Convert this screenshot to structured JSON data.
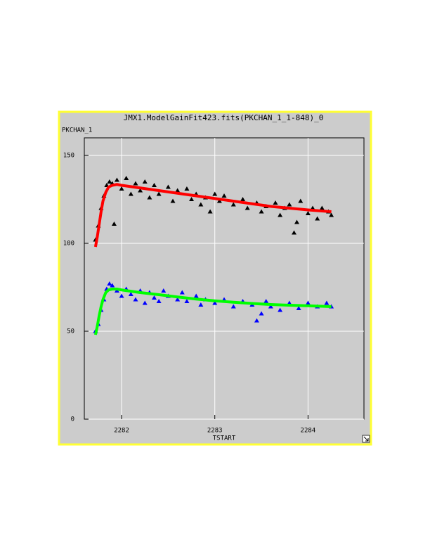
{
  "chart_data": {
    "type": "scatter",
    "title": "JMX1.ModelGainFit423.fits(PKCHAN_1_1-848)_0",
    "y_label": "PKCHAN_1",
    "x_label": "TSTART",
    "xlim": [
      2281.6,
      2284.6
    ],
    "xticks": [
      2282,
      2283,
      2284
    ],
    "ylim": [
      0,
      160
    ],
    "yticks": [
      0,
      50,
      100,
      150
    ],
    "grid": true,
    "series": [
      {
        "color": "#000000",
        "style": "markers",
        "x": [
          2281.72,
          2281.75,
          2281.78,
          2281.81,
          2281.84,
          2281.87,
          2281.9,
          2281.92,
          2281.95,
          2282.0,
          2282.05,
          2282.1,
          2282.15,
          2282.2,
          2282.25,
          2282.3,
          2282.35,
          2282.4,
          2282.5,
          2282.55,
          2282.6,
          2282.7,
          2282.75,
          2282.8,
          2282.85,
          2282.9,
          2282.95,
          2283.0,
          2283.05,
          2283.1,
          2283.2,
          2283.3,
          2283.35,
          2283.45,
          2283.5,
          2283.55,
          2283.65,
          2283.7,
          2283.75,
          2283.8,
          2283.85,
          2283.88,
          2283.92,
          2284.0,
          2284.05,
          2284.1,
          2284.15,
          2284.22,
          2284.25
        ],
        "values": [
          102,
          110,
          120,
          127,
          133,
          135,
          134,
          111,
          136,
          131,
          137,
          128,
          134,
          130,
          135,
          126,
          133,
          128,
          132,
          124,
          130,
          131,
          125,
          128,
          122,
          126,
          118,
          128,
          124,
          127,
          122,
          125,
          120,
          123,
          118,
          121,
          123,
          116,
          120,
          122,
          106,
          112,
          124,
          117,
          120,
          114,
          120,
          118,
          116
        ]
      },
      {
        "color": "#0000ff",
        "style": "markers",
        "x": [
          2281.72,
          2281.75,
          2281.78,
          2281.81,
          2281.84,
          2281.87,
          2281.9,
          2281.95,
          2282.0,
          2282.05,
          2282.1,
          2282.15,
          2282.2,
          2282.25,
          2282.3,
          2282.35,
          2282.4,
          2282.45,
          2282.5,
          2282.6,
          2282.65,
          2282.7,
          2282.8,
          2282.85,
          2282.9,
          2283.0,
          2283.1,
          2283.2,
          2283.3,
          2283.4,
          2283.45,
          2283.5,
          2283.55,
          2283.6,
          2283.7,
          2283.8,
          2283.9,
          2284.0,
          2284.1,
          2284.2,
          2284.25
        ],
        "values": [
          50,
          54,
          62,
          68,
          74,
          77,
          76,
          73,
          70,
          74,
          71,
          68,
          73,
          66,
          72,
          69,
          67,
          73,
          70,
          68,
          72,
          67,
          70,
          65,
          68,
          66,
          68,
          64,
          67,
          65,
          56,
          60,
          67,
          64,
          62,
          66,
          63,
          66,
          64,
          66,
          64
        ]
      },
      {
        "color": "#ff0000",
        "style": "line",
        "x": [
          2281.72,
          2281.74,
          2281.76,
          2281.78,
          2281.8,
          2281.83,
          2281.86,
          2281.9,
          2281.95,
          2282.0,
          2282.2,
          2282.4,
          2282.6,
          2282.8,
          2283.0,
          2283.2,
          2283.4,
          2283.6,
          2283.8,
          2284.0,
          2284.25
        ],
        "values": [
          98,
          104,
          111,
          118,
          124,
          129,
          132,
          133,
          133.5,
          133,
          131.5,
          130,
          128.5,
          127,
          125.5,
          124,
          122.5,
          121,
          120,
          119,
          118
        ]
      },
      {
        "color": "#00ff00",
        "style": "line",
        "x": [
          2281.72,
          2281.74,
          2281.76,
          2281.78,
          2281.8,
          2281.83,
          2281.86,
          2281.9,
          2281.95,
          2282.0,
          2282.2,
          2282.4,
          2282.6,
          2282.8,
          2283.0,
          2283.2,
          2283.4,
          2283.6,
          2283.8,
          2284.0,
          2284.25
        ],
        "values": [
          48,
          53,
          59,
          64,
          68,
          72,
          73.5,
          74,
          74,
          73.5,
          72,
          70.8,
          69.5,
          68.3,
          67.3,
          66.5,
          65.8,
          65.2,
          64.8,
          64.5,
          64
        ]
      }
    ]
  }
}
